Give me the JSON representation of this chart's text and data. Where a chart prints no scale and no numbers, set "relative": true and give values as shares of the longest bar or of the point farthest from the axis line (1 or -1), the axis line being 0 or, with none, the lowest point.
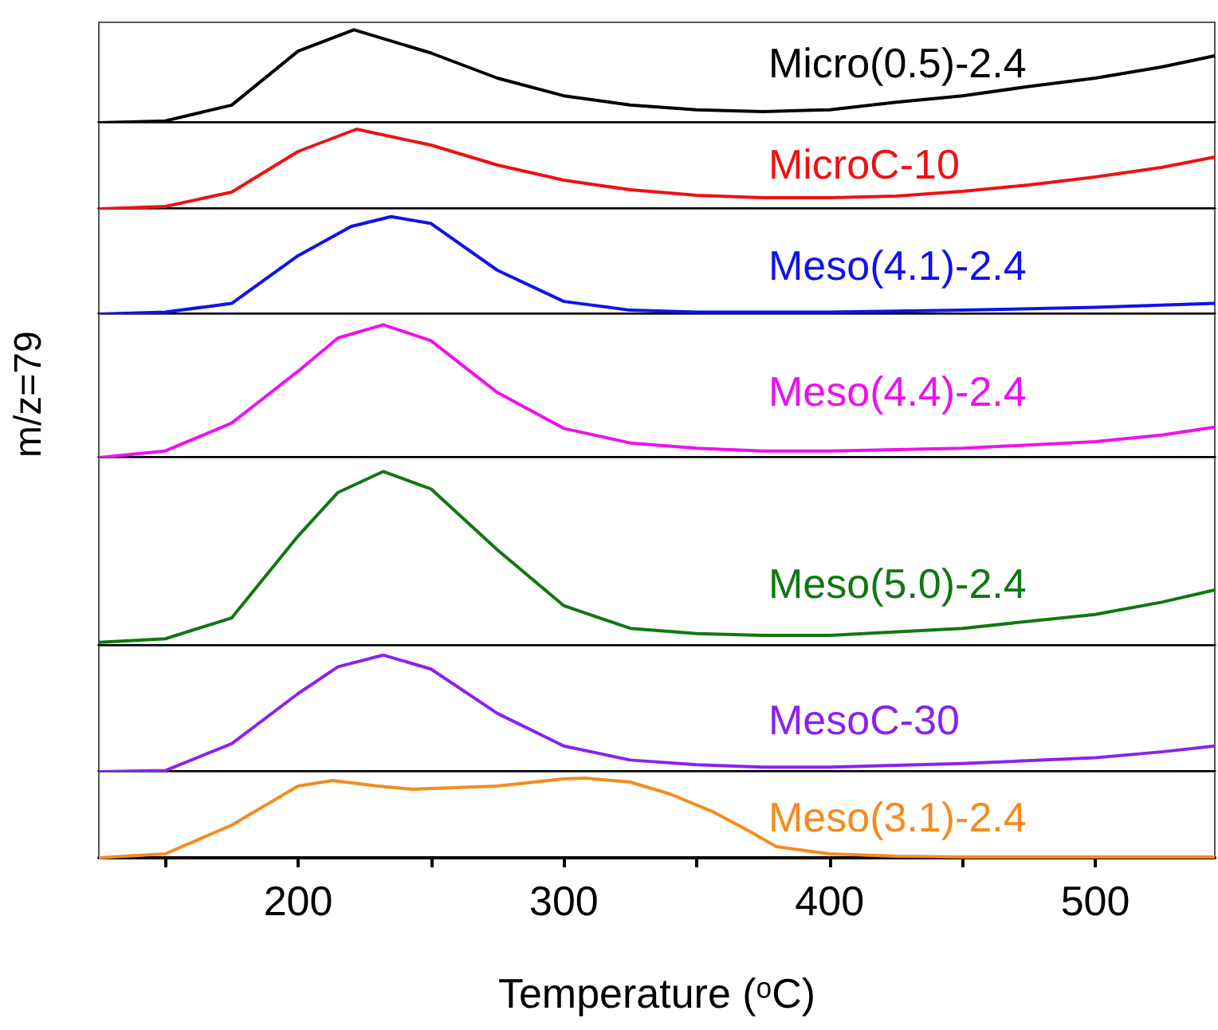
{
  "chart_data": [
    {
      "type": "line",
      "relative": true,
      "xlim": [
        125,
        545
      ],
      "tick_labels": false,
      "marker": "none",
      "x": [
        125,
        150,
        175,
        200,
        221,
        250,
        275,
        300,
        325,
        350,
        375,
        400,
        425,
        450,
        475,
        500,
        525,
        545
      ],
      "series": [
        {
          "name": "Micro(0.5)-2.4",
          "color": "#000000",
          "values": [
            0,
            0.02,
            0.19,
            0.77,
            1,
            0.75,
            0.48,
            0.29,
            0.19,
            0.14,
            0.12,
            0.14,
            0.22,
            0.29,
            0.39,
            0.48,
            0.6,
            0.72
          ]
        }
      ]
    },
    {
      "type": "line",
      "relative": true,
      "xlim": [
        125,
        545
      ],
      "tick_labels": false,
      "marker": "none",
      "x": [
        125,
        150,
        175,
        200,
        222,
        250,
        275,
        300,
        325,
        350,
        375,
        400,
        425,
        450,
        475,
        500,
        525,
        545
      ],
      "series": [
        {
          "name": "MicroC-10",
          "color": "#ee1111",
          "values": [
            0,
            0.03,
            0.21,
            0.72,
            1,
            0.8,
            0.55,
            0.36,
            0.24,
            0.17,
            0.14,
            0.14,
            0.16,
            0.22,
            0.3,
            0.4,
            0.52,
            0.65
          ]
        }
      ]
    },
    {
      "type": "line",
      "relative": true,
      "xlim": [
        125,
        545
      ],
      "tick_labels": false,
      "marker": "none",
      "x": [
        125,
        150,
        175,
        200,
        220,
        235,
        250,
        275,
        300,
        325,
        350,
        400,
        450,
        500,
        545
      ],
      "series": [
        {
          "name": "Meso(4.1)-2.4",
          "color": "#1111ee",
          "values": [
            0,
            0.02,
            0.11,
            0.6,
            0.9,
            1,
            0.93,
            0.45,
            0.13,
            0.04,
            0.02,
            0.02,
            0.04,
            0.07,
            0.11
          ]
        }
      ]
    },
    {
      "type": "line",
      "relative": true,
      "xlim": [
        125,
        545
      ],
      "tick_labels": false,
      "marker": "none",
      "ylabel": "m/z=79",
      "x": [
        125,
        150,
        175,
        200,
        215,
        232,
        250,
        275,
        300,
        325,
        350,
        375,
        400,
        450,
        500,
        525,
        545
      ],
      "series": [
        {
          "name": "Meso(4.4)-2.4",
          "color": "#ee11ee",
          "values": [
            0,
            0.05,
            0.26,
            0.65,
            0.9,
            1,
            0.88,
            0.49,
            0.22,
            0.11,
            0.07,
            0.05,
            0.05,
            0.07,
            0.12,
            0.17,
            0.23
          ]
        }
      ]
    },
    {
      "type": "line",
      "relative": true,
      "xlim": [
        125,
        545
      ],
      "tick_labels": false,
      "marker": "none",
      "x": [
        125,
        150,
        175,
        200,
        215,
        232,
        250,
        275,
        300,
        325,
        350,
        375,
        400,
        450,
        500,
        525,
        545
      ],
      "series": [
        {
          "name": "Meso(5.0)-2.4",
          "color": "#117711",
          "values": [
            0.02,
            0.04,
            0.16,
            0.63,
            0.88,
            1,
            0.9,
            0.55,
            0.23,
            0.1,
            0.07,
            0.06,
            0.06,
            0.1,
            0.18,
            0.25,
            0.32
          ]
        }
      ]
    },
    {
      "type": "line",
      "relative": true,
      "xlim": [
        125,
        545
      ],
      "tick_labels": false,
      "marker": "none",
      "x": [
        125,
        150,
        175,
        200,
        215,
        232,
        250,
        275,
        300,
        325,
        350,
        375,
        400,
        450,
        500,
        525,
        545
      ],
      "series": [
        {
          "name": "MesoC-30",
          "color": "#8b22ee",
          "values": [
            0,
            0.01,
            0.24,
            0.67,
            0.9,
            1,
            0.88,
            0.5,
            0.22,
            0.1,
            0.06,
            0.04,
            0.04,
            0.07,
            0.12,
            0.17,
            0.22
          ]
        }
      ]
    },
    {
      "type": "line",
      "relative": true,
      "xlim": [
        125,
        545
      ],
      "tick_labels": "x",
      "marker": "none",
      "xlabel": "Temperature (ᵒC)",
      "xticks": [
        {
          "value": 150,
          "label": null
        },
        200,
        {
          "value": 250,
          "label": null
        },
        300,
        {
          "value": 350,
          "label": null
        },
        400,
        {
          "value": 450,
          "label": null
        },
        500
      ],
      "x": [
        125,
        150,
        175,
        200,
        213,
        230,
        243,
        275,
        300,
        308,
        325,
        340,
        356,
        370,
        380,
        400,
        425,
        450,
        545
      ],
      "series": [
        {
          "name": "Meso(3.1)-2.4",
          "color": "#f58b1f",
          "values": [
            0,
            0.05,
            0.41,
            0.9,
            0.97,
            0.9,
            0.86,
            0.9,
            0.99,
            1,
            0.95,
            0.8,
            0.58,
            0.33,
            0.14,
            0.05,
            0.02,
            0.01,
            0.01
          ]
        }
      ]
    }
  ]
}
